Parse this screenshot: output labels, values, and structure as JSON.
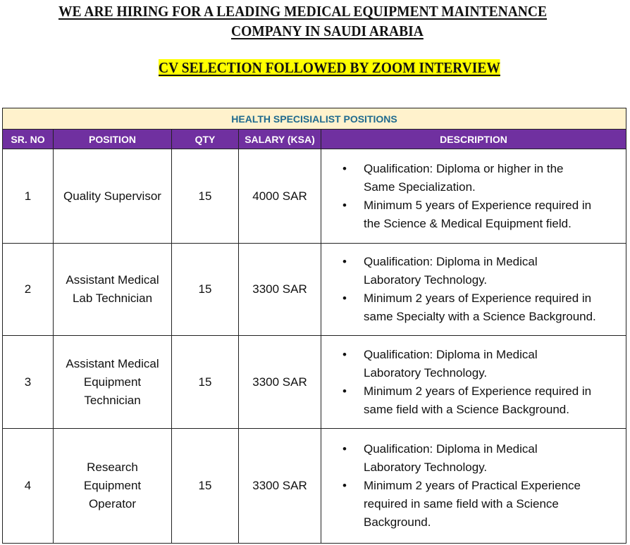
{
  "header": {
    "line1": "WE ARE HIRING FOR A LEADING MEDICAL EQUIPMENT MAINTENANCE",
    "line2": "COMPANY IN SAUDI ARABIA",
    "line3": "CV SELECTION FOLLOWED BY ZOOM INTERVIEW"
  },
  "table": {
    "title": "HEALTH SPECISIALIST POSITIONS",
    "columns": [
      "SR. NO",
      "POSITION",
      "QTY",
      "SALARY (KSA)",
      "DESCRIPTION"
    ],
    "rows": [
      {
        "sr": "1",
        "position": "Quality Supervisor",
        "qty": "15",
        "salary": "4000 SAR",
        "bullets": [
          "Qualification: Diploma or higher in the\nSame Specialization.",
          "Minimum 5 years of Experience required in\nthe Science & Medical Equipment field."
        ]
      },
      {
        "sr": "2",
        "position": "Assistant Medical\nLab Technician",
        "qty": "15",
        "salary": "3300 SAR",
        "bullets": [
          "Qualification: Diploma in Medical\nLaboratory Technology.",
          "Minimum 2 years of Experience required in\nsame Specialty with a Science Background."
        ]
      },
      {
        "sr": "3",
        "position": "Assistant Medical\nEquipment\nTechnician",
        "qty": "15",
        "salary": "3300 SAR",
        "bullets": [
          "Qualification: Diploma in Medical\nLaboratory Technology.",
          "Minimum 2 years of Experience required in\nsame field with a Science Background."
        ]
      },
      {
        "sr": "4",
        "position": "Research\nEquipment\nOperator",
        "qty": "15",
        "salary": "3300 SAR",
        "bullets": [
          "Qualification: Diploma in Medical\nLaboratory Technology.",
          "Minimum 2 years of Practical Experience\nrequired in same field with a Science\nBackground."
        ]
      }
    ]
  },
  "colors": {
    "header_bg": "#7030a0",
    "title_bg": "#fff2cc",
    "title_text": "#1f6a8e",
    "highlight": "#ffff00"
  }
}
